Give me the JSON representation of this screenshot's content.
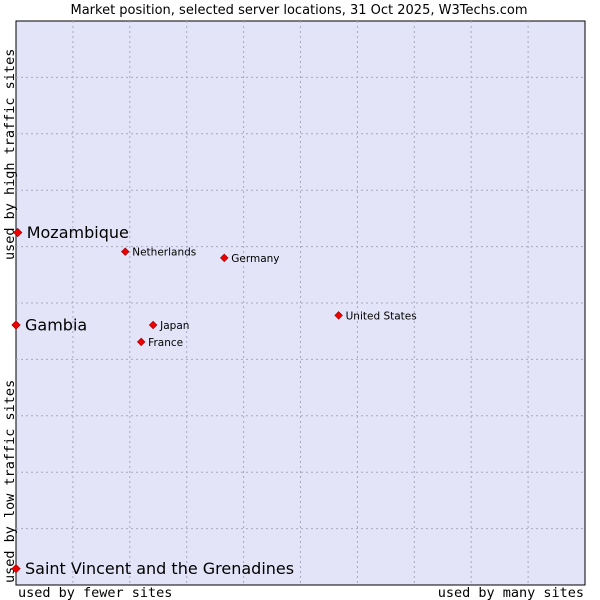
{
  "chart_data": {
    "type": "scatter",
    "title": "Market position, selected server locations, 31 Oct 2025, W3Techs.com",
    "xlabel_left": "used by fewer sites",
    "xlabel_right": "used by many sites",
    "ylabel_bottom": "used by low traffic sites",
    "ylabel_top": "used by high traffic sites",
    "xlim": [
      0,
      100
    ],
    "ylim": [
      0,
      100
    ],
    "grid": true,
    "points": [
      {
        "name": "Mozambique",
        "x": 0.3,
        "y": 62.5,
        "size": "large"
      },
      {
        "name": "Gambia",
        "x": 0.0,
        "y": 46.1,
        "size": "large"
      },
      {
        "name": "Saint Vincent and the Grenadines",
        "x": 0.0,
        "y": 2.9,
        "size": "large"
      },
      {
        "name": "Netherlands",
        "x": 19.2,
        "y": 59.1,
        "size": "small"
      },
      {
        "name": "Germany",
        "x": 36.6,
        "y": 58.0,
        "size": "small"
      },
      {
        "name": "United States",
        "x": 56.7,
        "y": 47.8,
        "size": "small"
      },
      {
        "name": "Japan",
        "x": 24.1,
        "y": 46.1,
        "size": "small"
      },
      {
        "name": "France",
        "x": 22.0,
        "y": 43.1,
        "size": "small"
      }
    ]
  }
}
